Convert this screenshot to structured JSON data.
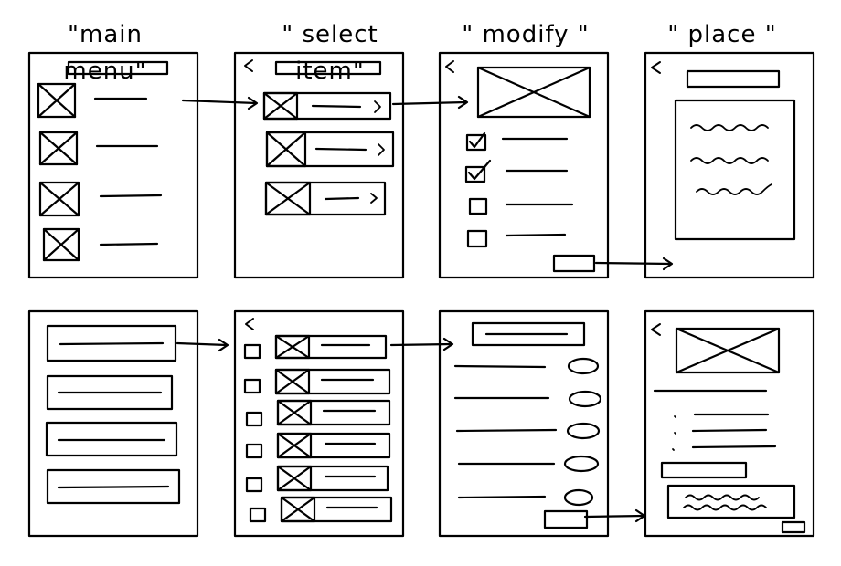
{
  "titles": {
    "main_menu": "\"main menu\"",
    "select_item": "\" select item\"",
    "modify": "\" modify \"",
    "place": "\" place \""
  },
  "icons": {
    "back": "chevron-left-icon",
    "forward": "chevron-right-icon",
    "image": "image-placeholder-icon",
    "check": "checkbox-icon",
    "flow_arrow": "arrow-right-icon"
  },
  "colors": {
    "ink": "#000000",
    "paper": "#ffffff"
  }
}
